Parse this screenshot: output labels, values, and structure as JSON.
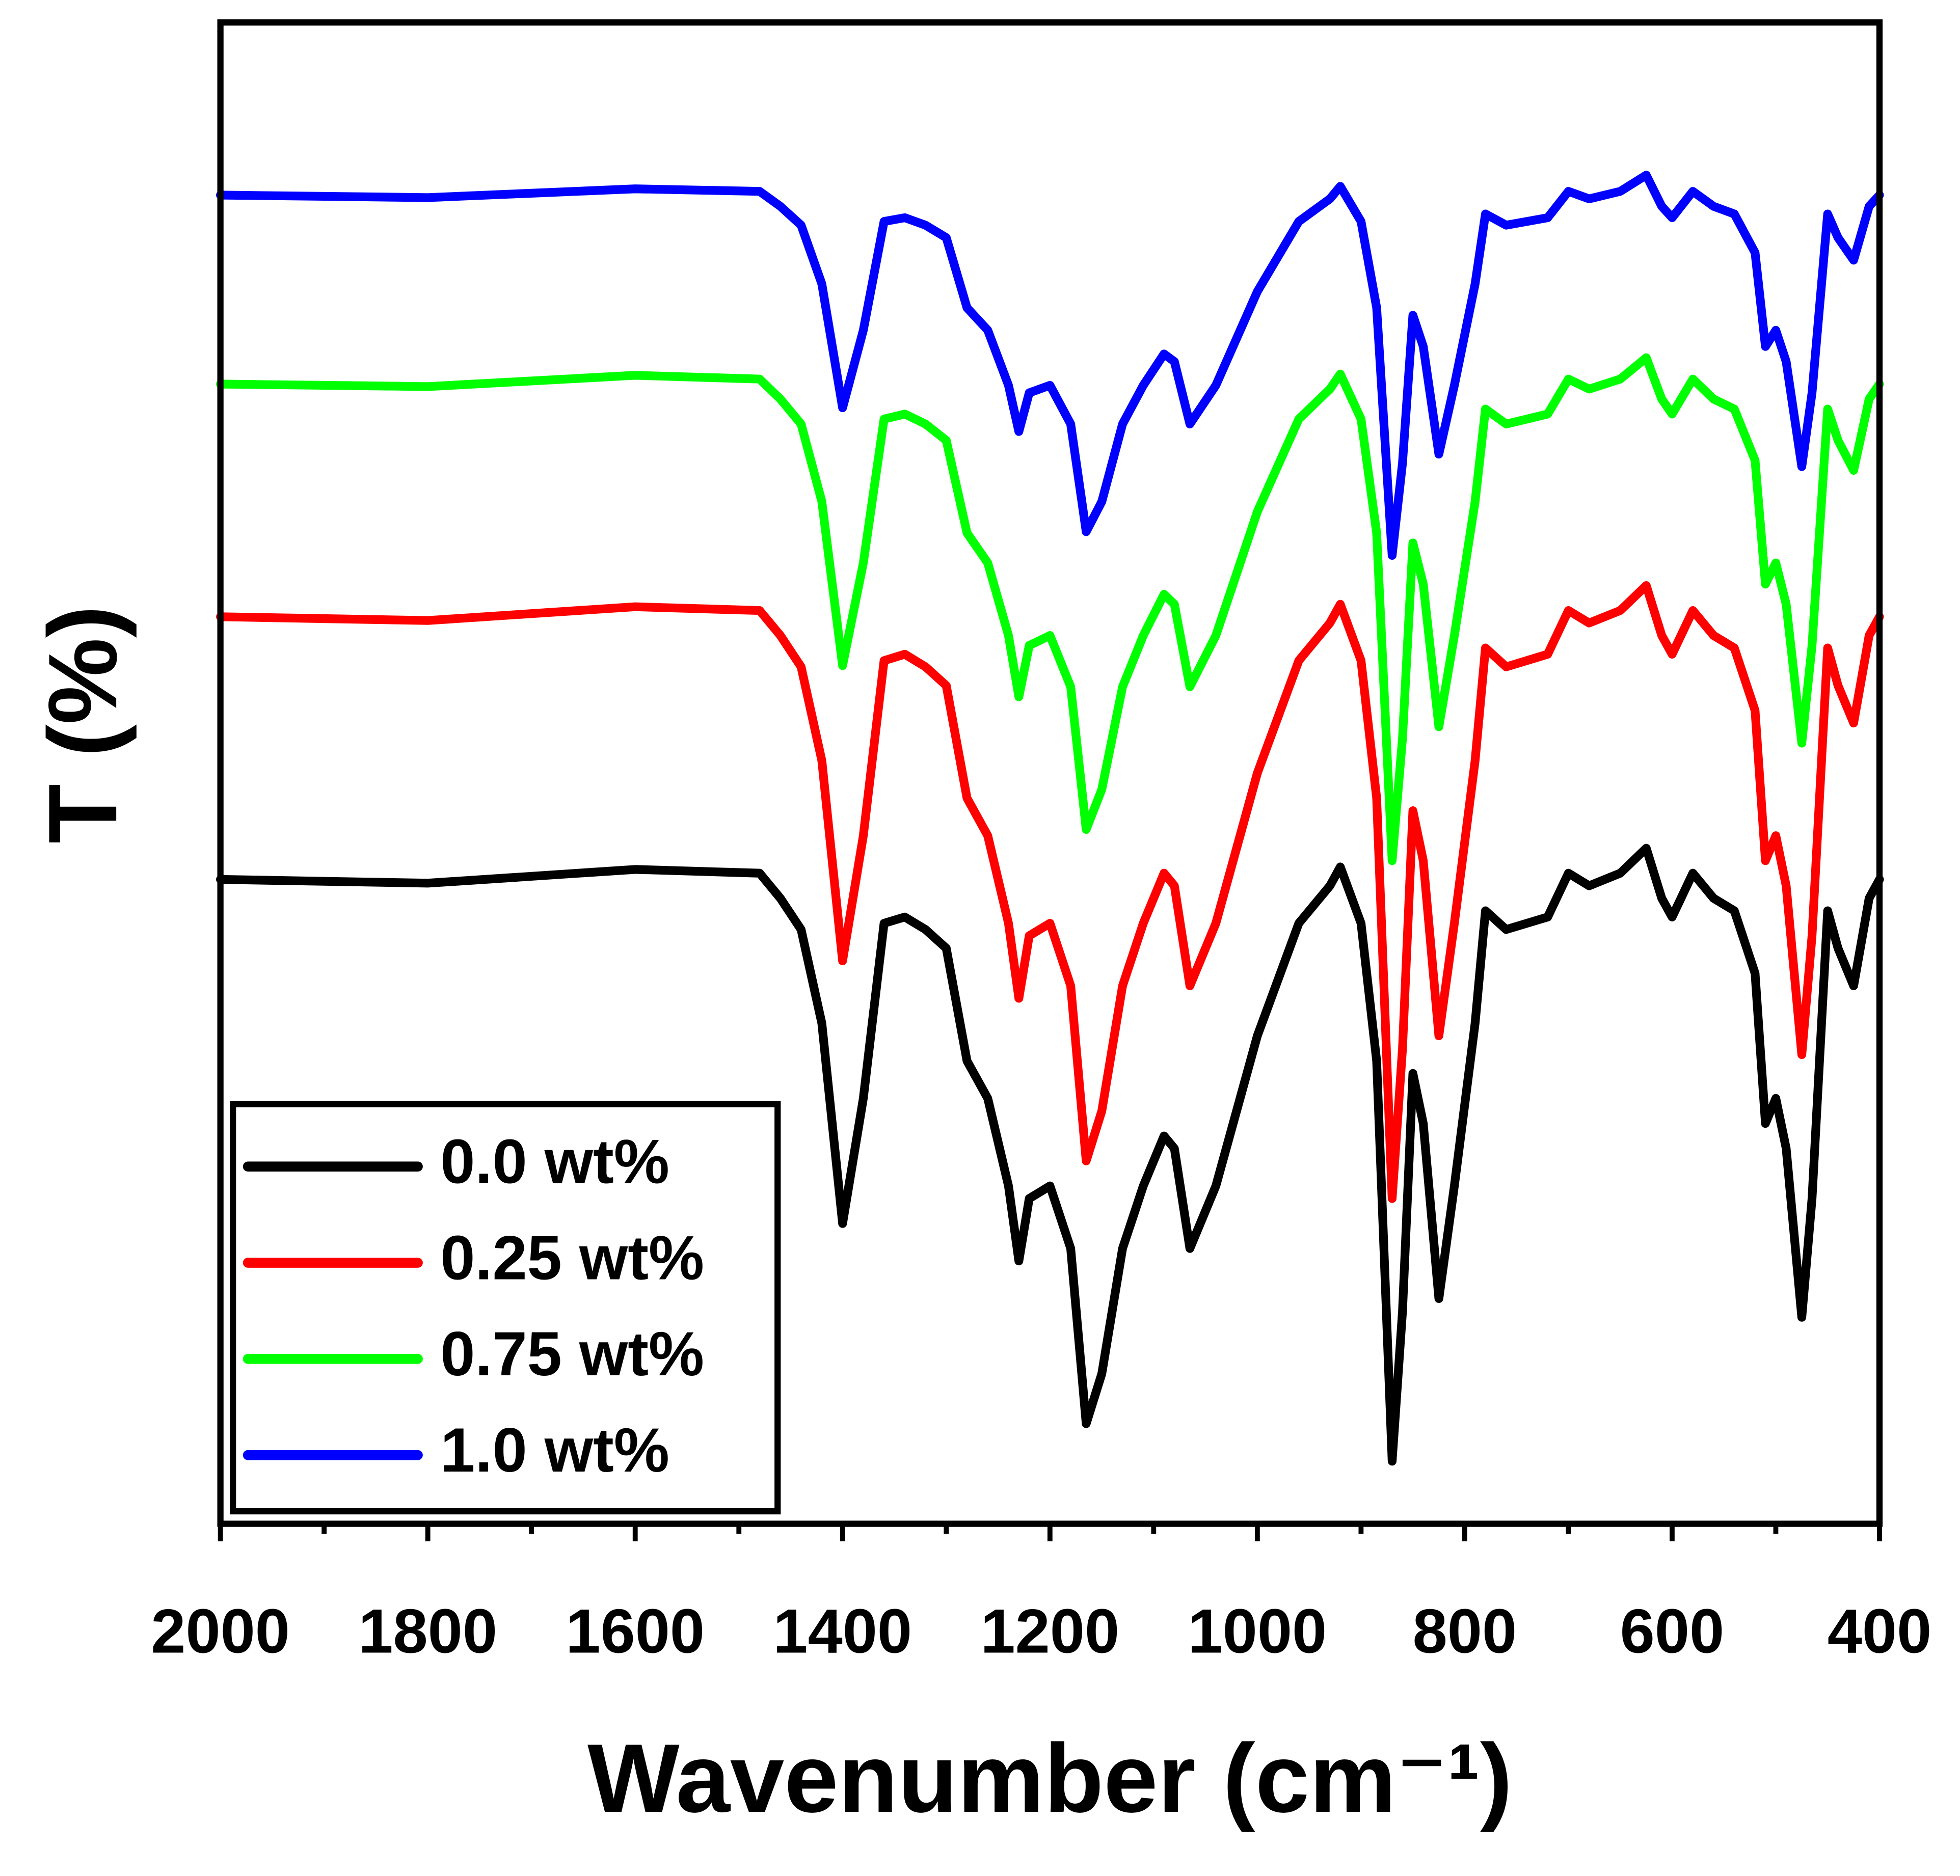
{
  "chart_data": {
    "type": "line",
    "xlabel": "Wavenumber (cm⁻¹)",
    "ylabel": "T (%)",
    "xlim": [
      2000,
      400
    ],
    "ylim": [
      0,
      120
    ],
    "xticks": [
      2000,
      1800,
      1600,
      1400,
      1200,
      1000,
      800,
      600,
      400
    ],
    "xminorticks": [
      1900,
      1700,
      1500,
      1300,
      1100,
      900,
      700,
      500
    ],
    "legend": "lower left",
    "x": [
      2000,
      1800,
      1600,
      1480,
      1460,
      1440,
      1420,
      1400,
      1380,
      1360,
      1340,
      1320,
      1300,
      1280,
      1260,
      1240,
      1230,
      1220,
      1200,
      1180,
      1165,
      1150,
      1130,
      1110,
      1090,
      1080,
      1065,
      1040,
      1000,
      960,
      930,
      920,
      900,
      885,
      870,
      860,
      850,
      840,
      825,
      810,
      790,
      780,
      760,
      720,
      700,
      680,
      650,
      625,
      610,
      600,
      580,
      560,
      540,
      520,
      510,
      500,
      490,
      475,
      465,
      450,
      440,
      425,
      410,
      400
    ],
    "series": [
      {
        "name": "0.0 wt%",
        "color": "#000000",
        "values": [
          51.5,
          51.2,
          52.3,
          52.0,
          50.0,
          47.5,
          40.0,
          24.0,
          34.0,
          48.0,
          48.5,
          47.5,
          46.0,
          37.0,
          34.0,
          27.0,
          21.0,
          26.0,
          27.0,
          22.0,
          8.0,
          12.0,
          22.0,
          27.0,
          31.0,
          30.0,
          22.0,
          27.0,
          39.0,
          48.0,
          51.0,
          52.5,
          48.0,
          37.0,
          5.0,
          17.0,
          36.0,
          32.0,
          18.0,
          27.0,
          40.0,
          49.0,
          47.5,
          48.5,
          52.0,
          51.0,
          52.0,
          54.0,
          50.0,
          48.5,
          52.0,
          50.0,
          49.0,
          44.0,
          32.0,
          34.0,
          30.0,
          16.5,
          26.0,
          49.0,
          46.0,
          43.0,
          50.0,
          51.5
        ]
      },
      {
        "name": "0.25 wt%",
        "color": "#ff0000",
        "values": [
          72.5,
          72.2,
          73.3,
          73,
          71,
          68.5,
          61,
          45,
          55,
          69,
          69.5,
          68.5,
          67,
          58,
          55,
          48,
          42,
          47,
          48,
          43,
          29,
          33,
          43,
          48,
          52,
          51,
          43,
          48,
          60,
          69,
          72,
          73.5,
          69,
          58,
          26,
          38,
          57,
          53,
          39,
          48,
          61,
          70,
          68.5,
          69.5,
          73,
          72,
          73,
          75,
          71,
          69.5,
          73,
          71,
          70,
          65,
          53,
          55,
          51,
          37.5,
          47,
          70,
          67,
          64,
          71,
          72.5
        ]
      },
      {
        "name": "0.75 wt%",
        "color": "#00ff00",
        "values": [
          91.1,
          90.9,
          91.8,
          91.5,
          89.9,
          87.9,
          81.7,
          68.6,
          76.8,
          88.3,
          88.7,
          87.9,
          86.6,
          79.2,
          76.8,
          71.0,
          66.1,
          70.2,
          71.0,
          66.9,
          55.5,
          58.7,
          66.9,
          71.0,
          74.3,
          73.5,
          66.9,
          71.0,
          80.9,
          88.3,
          90.7,
          91.9,
          88.3,
          79.2,
          53.0,
          62.8,
          78.4,
          75.1,
          63.7,
          71.0,
          81.7,
          89.1,
          87.9,
          88.7,
          91.5,
          90.7,
          91.5,
          93.2,
          89.9,
          88.7,
          91.5,
          89.9,
          89.1,
          85.0,
          75.1,
          76.8,
          73.5,
          62.4,
          70.2,
          89.1,
          86.6,
          84.2,
          89.9,
          91.1
        ]
      },
      {
        "name": "1.0 wt%",
        "color": "#0000ff",
        "values": [
          106.2,
          106.0,
          106.7,
          106.5,
          105.3,
          103.8,
          99.1,
          89.2,
          95.4,
          104.1,
          104.4,
          103.8,
          102.8,
          97.2,
          95.4,
          91.0,
          87.3,
          90.4,
          91.0,
          87.9,
          79.3,
          81.7,
          87.9,
          91.0,
          93.5,
          92.9,
          87.9,
          91.0,
          98.5,
          104.1,
          105.9,
          106.9,
          104.1,
          97.2,
          77.4,
          84.8,
          96.6,
          94.1,
          85.5,
          91.0,
          99.1,
          104.7,
          103.8,
          104.4,
          106.5,
          105.9,
          106.5,
          107.8,
          105.3,
          104.4,
          106.5,
          105.3,
          104.7,
          101.6,
          94.1,
          95.4,
          92.9,
          84.5,
          90.4,
          104.7,
          102.8,
          101.0,
          105.3,
          106.2
        ]
      }
    ]
  }
}
